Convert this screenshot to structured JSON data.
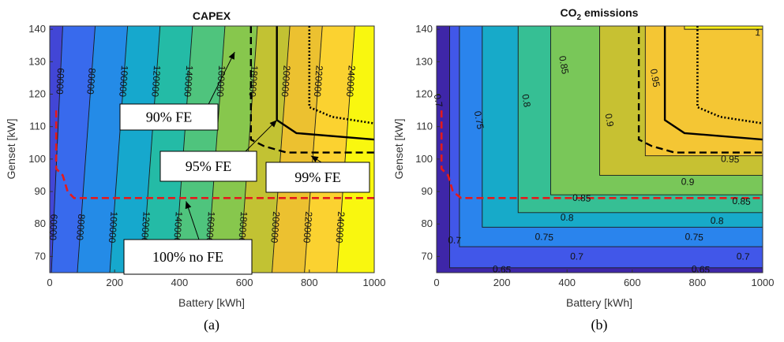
{
  "captions": [
    "(a)",
    "(b)"
  ],
  "colors": {
    "threshold_line": "#e41a1c",
    "fe_line": "#000000",
    "colormap": [
      "#3e26a8",
      "#4353e8",
      "#2f7df2",
      "#13a3d6",
      "#22bba8",
      "#56c676",
      "#9dc83b",
      "#e4bc2c",
      "#fcca37",
      "#f9f70f"
    ]
  },
  "chart_data": [
    {
      "type": "contour",
      "title": "CAPEX",
      "xlabel": "Battery [kWh]",
      "ylabel": "Genset [kW]",
      "xlim": [
        0,
        1000
      ],
      "ylim": [
        65,
        141
      ],
      "xticks": [
        0,
        200,
        400,
        600,
        800,
        1000
      ],
      "yticks": [
        70,
        80,
        90,
        100,
        110,
        120,
        130,
        140
      ],
      "colormap": "parula",
      "contour_lines": [
        {
          "x_top": 40,
          "x_bottom": 5,
          "top_label": "60000",
          "bottom_label": "60000"
        },
        {
          "x_top": 140,
          "x_bottom": 85,
          "top_label": "80000",
          "bottom_label": "80000"
        },
        {
          "x_top": 240,
          "x_bottom": 185,
          "top_label": "100000",
          "bottom_label": "100000"
        },
        {
          "x_top": 340,
          "x_bottom": 285,
          "top_label": "120000",
          "bottom_label": "120000"
        },
        {
          "x_top": 440,
          "x_bottom": 385,
          "top_label": "140000",
          "bottom_label": "140000"
        },
        {
          "x_top": 540,
          "x_bottom": 485,
          "top_label": "160000",
          "bottom_label": "160000"
        },
        {
          "x_top": 640,
          "x_bottom": 585,
          "top_label": "180000",
          "bottom_label": "180000"
        },
        {
          "x_top": 740,
          "x_bottom": 685,
          "top_label": "200000",
          "bottom_label": "200000"
        },
        {
          "x_top": 840,
          "x_bottom": 785,
          "top_label": "220000",
          "bottom_label": "220000"
        },
        {
          "x_top": 940,
          "x_bottom": 885,
          "top_label": "240000",
          "bottom_label": "240000"
        }
      ],
      "fe_lines": [
        {
          "name": "90% FE",
          "style": "dashed",
          "points": [
            [
              620,
              141
            ],
            [
              620,
              106
            ],
            [
              660,
              104
            ],
            [
              730,
              102
            ],
            [
              1000,
              102
            ]
          ]
        },
        {
          "name": "95% FE",
          "style": "solid",
          "points": [
            [
              700,
              141
            ],
            [
              700,
              112
            ],
            [
              760,
              108
            ],
            [
              1000,
              106
            ]
          ]
        },
        {
          "name": "99% FE",
          "style": "dotted",
          "points": [
            [
              800,
              141
            ],
            [
              800,
              116
            ],
            [
              870,
              113
            ],
            [
              1000,
              111
            ]
          ]
        },
        {
          "name": "100% no FE",
          "style": "red-dashed",
          "points": [
            [
              20,
              115
            ],
            [
              20,
              97
            ],
            [
              40,
              95
            ],
            [
              55,
              90
            ],
            [
              75,
              88
            ],
            [
              1000,
              88
            ]
          ]
        }
      ],
      "annotations": [
        {
          "text": "90% FE",
          "box_xy": [
            150,
            280
          ],
          "target": [
            570,
            133
          ]
        },
        {
          "text": "95% FE",
          "box_xy": [
            205,
            345
          ],
          "target": [
            700,
            112
          ]
        },
        {
          "text": "99% FE",
          "box_xy": [
            340,
            400
          ],
          "target": [
            805,
            101
          ]
        },
        {
          "text": "100% no FE",
          "box_xy": [
            130,
            480
          ],
          "target": [
            420,
            87
          ]
        }
      ]
    },
    {
      "type": "contour",
      "title": "CO2 emissions",
      "title_main": "CO",
      "title_sub": "2",
      "title_rest": " emissions",
      "xlabel": "Battery [kWh]",
      "ylabel": "Genset [kW]",
      "xlim": [
        0,
        1000
      ],
      "ylim": [
        65,
        141
      ],
      "xticks": [
        0,
        200,
        400,
        600,
        800,
        1000
      ],
      "yticks": [
        70,
        80,
        90,
        100,
        110,
        120,
        130,
        140
      ],
      "colormap": "parula",
      "levels": [
        0.65,
        0.7,
        0.75,
        0.8,
        0.85,
        0.9,
        0.95,
        1
      ],
      "level_corners": [
        {
          "level": 0.65,
          "x": 40,
          "y": 66.5
        },
        {
          "level": 0.7,
          "x": 70,
          "y": 73
        },
        {
          "level": 0.75,
          "x": 140,
          "y": 79
        },
        {
          "level": 0.8,
          "x": 250,
          "y": 83.5
        },
        {
          "level": 0.85,
          "x": 350,
          "y": 89
        },
        {
          "level": 0.9,
          "x": 500,
          "y": 95
        },
        {
          "level": 0.95,
          "x": 640,
          "y": 101
        },
        {
          "level": 1,
          "x": 760,
          "y": 140
        }
      ],
      "level_labels": [
        {
          "text": "0.65",
          "x": 200,
          "y": 66
        },
        {
          "text": "0.65",
          "x": 810,
          "y": 66
        },
        {
          "text": "0.7",
          "x": 430,
          "y": 70
        },
        {
          "text": "0.7",
          "x": 940,
          "y": 70
        },
        {
          "text": "0.7",
          "x": 55,
          "y": 75
        },
        {
          "text": "0.75",
          "x": 330,
          "y": 76
        },
        {
          "text": "0.75",
          "x": 790,
          "y": 76
        },
        {
          "text": "0.8",
          "x": 400,
          "y": 82
        },
        {
          "text": "0.8",
          "x": 860,
          "y": 81
        },
        {
          "text": "0.85",
          "x": 445,
          "y": 88
        },
        {
          "text": "0.85",
          "x": 935,
          "y": 87
        },
        {
          "text": "0.9",
          "x": 770,
          "y": 93
        },
        {
          "text": "0.95",
          "x": 900,
          "y": 100
        },
        {
          "text": "0.75",
          "x": 130,
          "y": 112
        },
        {
          "text": "0.8",
          "x": 275,
          "y": 118
        },
        {
          "text": "0.85",
          "x": 390,
          "y": 129
        },
        {
          "text": "0.9",
          "x": 530,
          "y": 112
        },
        {
          "text": "0.95",
          "x": 670,
          "y": 125
        },
        {
          "text": "0.7",
          "x": 5,
          "y": 118
        },
        {
          "text": "1",
          "x": 985,
          "y": 139
        }
      ],
      "fe_lines": [
        {
          "name": "90% FE",
          "style": "dashed",
          "points": [
            [
              620,
              141
            ],
            [
              620,
              106
            ],
            [
              660,
              104
            ],
            [
              730,
              102
            ],
            [
              1000,
              102
            ]
          ]
        },
        {
          "name": "95% FE",
          "style": "solid",
          "points": [
            [
              700,
              141
            ],
            [
              700,
              112
            ],
            [
              760,
              108
            ],
            [
              1000,
              106
            ]
          ]
        },
        {
          "name": "99% FE",
          "style": "dotted",
          "points": [
            [
              800,
              141
            ],
            [
              800,
              116
            ],
            [
              870,
              113
            ],
            [
              1000,
              111
            ]
          ]
        },
        {
          "name": "100% no FE",
          "style": "red-dashed",
          "points": [
            [
              15,
              115
            ],
            [
              15,
              97
            ],
            [
              35,
              95
            ],
            [
              50,
              90
            ],
            [
              75,
              88
            ],
            [
              1000,
              88
            ]
          ]
        }
      ]
    }
  ]
}
